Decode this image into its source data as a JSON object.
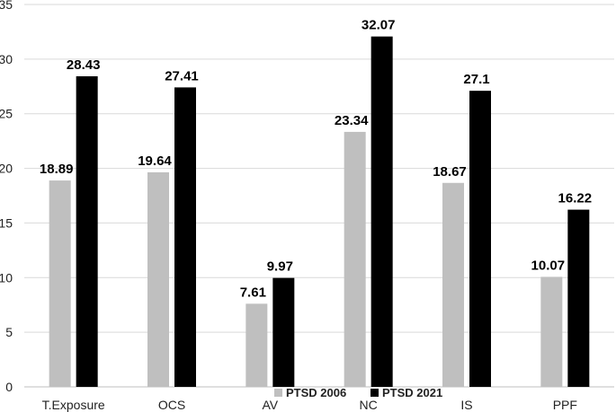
{
  "chart_data": {
    "type": "bar",
    "title": "",
    "xlabel": "",
    "ylabel": "",
    "ylim": [
      0,
      35
    ],
    "yticks": [
      0,
      5,
      10,
      15,
      20,
      25,
      30,
      35
    ],
    "grid": true,
    "legend_position": "bottom-center",
    "categories": [
      "T.Exposure",
      "OCS",
      "AV",
      "NC",
      "IS",
      "PPF"
    ],
    "series": [
      {
        "name": "PTSD 2006",
        "color": "#bfbfbf",
        "values": [
          18.89,
          19.64,
          7.61,
          23.34,
          18.67,
          10.07
        ]
      },
      {
        "name": "PTSD 2021",
        "color": "#000000",
        "values": [
          28.43,
          27.41,
          9.97,
          32.07,
          27.1,
          16.22
        ]
      }
    ]
  }
}
